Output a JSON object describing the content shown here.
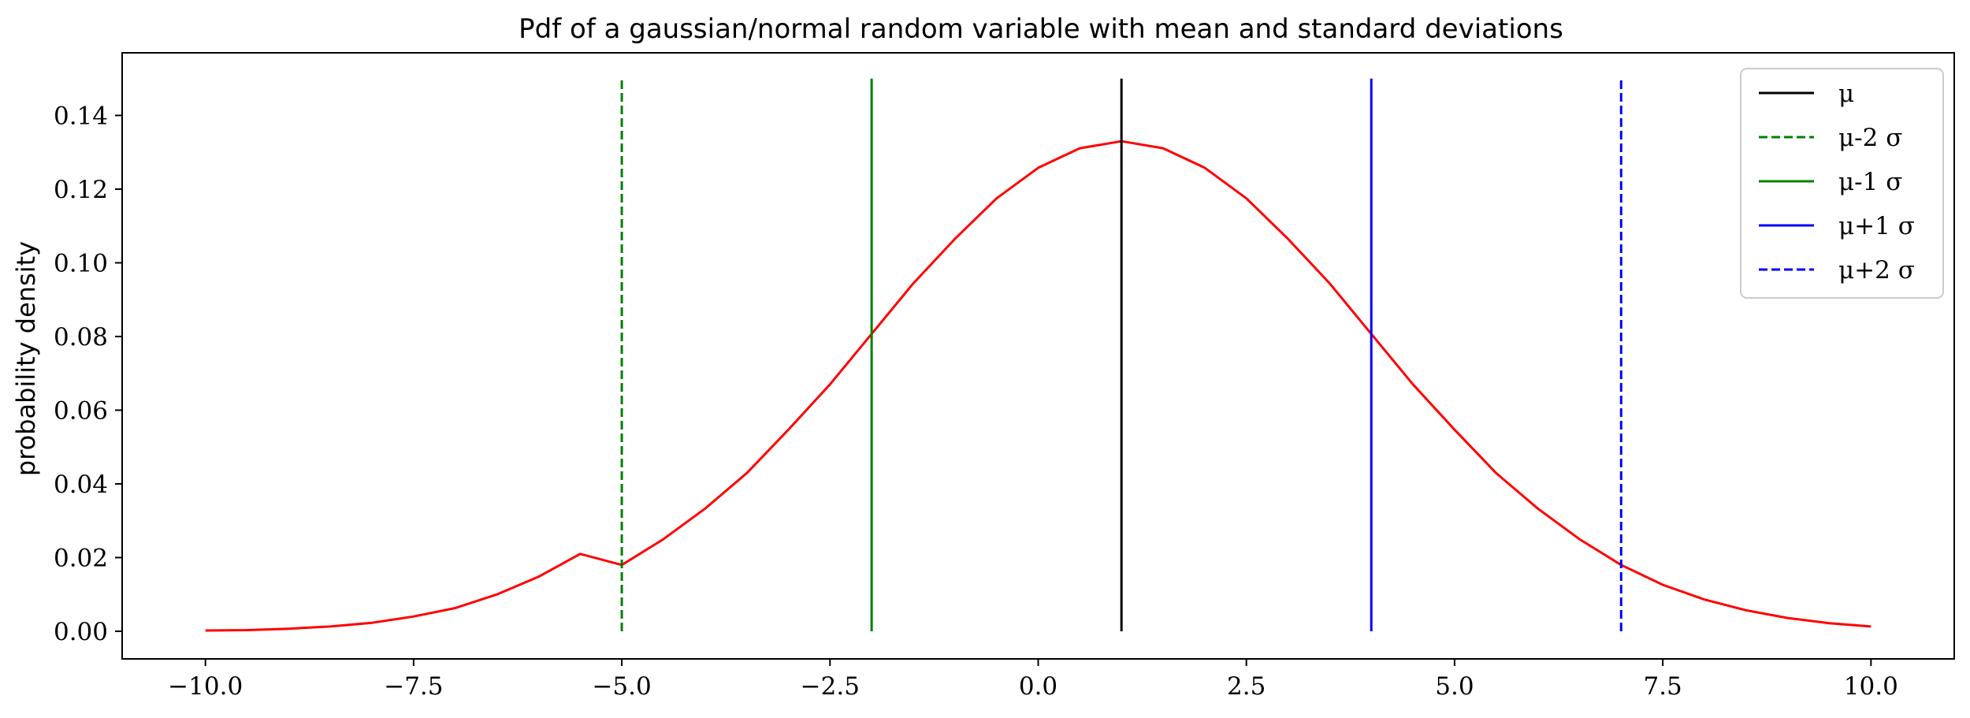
{
  "chart_data": {
    "type": "line",
    "title": "Pdf of a gaussian/normal random variable with mean and standard deviations",
    "xlabel": "",
    "ylabel": "probability density",
    "xlim": [
      -11.0,
      11.0
    ],
    "ylim": [
      -0.0075,
      0.157
    ],
    "x_ticks": [
      -10.0,
      -7.5,
      -5.0,
      -2.5,
      0.0,
      2.5,
      5.0,
      7.5,
      10.0
    ],
    "x_tick_labels": [
      "−10.0",
      "−7.5",
      "−5.0",
      "−2.5",
      "0.0",
      "2.5",
      "5.0",
      "7.5",
      "10.0"
    ],
    "y_ticks": [
      0.0,
      0.02,
      0.04,
      0.06,
      0.08,
      0.1,
      0.12,
      0.14
    ],
    "y_tick_labels": [
      "0.00",
      "0.02",
      "0.04",
      "0.06",
      "0.08",
      "0.10",
      "0.12",
      "0.14"
    ],
    "grid": false,
    "legend_position": "top-right",
    "curve": {
      "color": "#ff0000",
      "x": [
        -10.0,
        -9.5,
        -9.0,
        -8.5,
        -8.0,
        -7.5,
        -7.0,
        -6.5,
        -6.0,
        -5.5,
        -5.0,
        -4.5,
        -4.0,
        -3.5,
        -3.0,
        -2.5,
        -2.0,
        -1.5,
        -1.0,
        -0.5,
        0.0,
        0.5,
        1.0,
        1.5,
        2.0,
        2.5,
        3.0,
        3.5,
        4.0,
        4.5,
        5.0,
        5.5,
        6.0,
        6.5,
        7.0,
        7.5,
        8.0,
        8.5,
        9.0,
        9.5,
        10.0
      ],
      "y": [
        0.0002,
        0.0003,
        0.0007,
        0.0013,
        0.0023,
        0.004,
        0.0063,
        0.01,
        0.0148,
        0.021,
        0.018,
        0.025,
        0.0333,
        0.0429,
        0.0547,
        0.067,
        0.0807,
        0.0944,
        0.1065,
        0.1175,
        0.1258,
        0.1311,
        0.133,
        0.1311,
        0.1258,
        0.1175,
        0.1065,
        0.0944,
        0.0807,
        0.067,
        0.0547,
        0.0429,
        0.0333,
        0.025,
        0.018,
        0.0126,
        0.0086,
        0.0057,
        0.0036,
        0.0022,
        0.0013
      ]
    },
    "vlines": [
      {
        "label": "μ",
        "x": 1.0,
        "ymin": 0.0,
        "ymax": 0.15,
        "color": "#000000",
        "dashed": false
      },
      {
        "label": "μ-2 σ",
        "x": -5.0,
        "ymin": 0.0,
        "ymax": 0.15,
        "color": "#008000",
        "dashed": true
      },
      {
        "label": "μ-1 σ",
        "x": -2.0,
        "ymin": 0.0,
        "ymax": 0.15,
        "color": "#008000",
        "dashed": false
      },
      {
        "label": "μ+1 σ",
        "x": 4.0,
        "ymin": 0.0,
        "ymax": 0.15,
        "color": "#0000ff",
        "dashed": false
      },
      {
        "label": "μ+2 σ",
        "x": 7.0,
        "ymin": 0.0,
        "ymax": 0.15,
        "color": "#0000ff",
        "dashed": true
      }
    ]
  }
}
